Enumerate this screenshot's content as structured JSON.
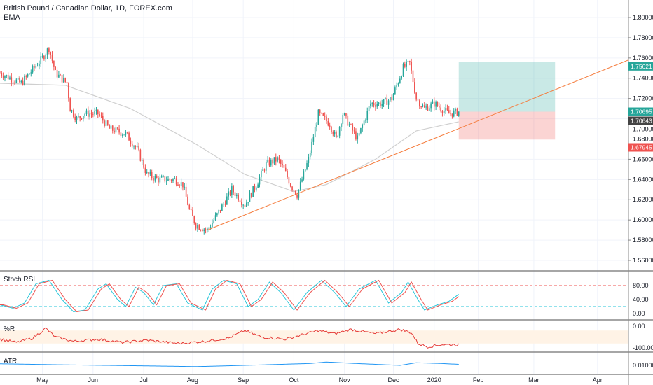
{
  "header": {
    "title": "British Pound / Canadian Dollar, 1D, FOREX.com",
    "indicator": "EMA"
  },
  "panels": {
    "stoch": "Stoch RSI",
    "wr": "%R",
    "atr": "ATR"
  },
  "chart_data": {
    "type": "candlestick",
    "symbol": "GBPCAD",
    "price_axis": {
      "ticks": [
        "1.80000",
        "1.78000",
        "1.76000",
        "1.74000",
        "1.72000",
        "1.70000",
        "1.68000",
        "1.66000",
        "1.64000",
        "1.62000",
        "1.60000",
        "1.58000",
        "1.56000"
      ],
      "ylim": [
        1.55,
        1.815
      ]
    },
    "time_axis": {
      "labels": [
        {
          "t": "May",
          "day": 26
        },
        {
          "t": "Jun",
          "day": 57
        },
        {
          "t": "Jul",
          "day": 88
        },
        {
          "t": "Aug",
          "day": 118
        },
        {
          "t": "Sep",
          "day": 149
        },
        {
          "t": "Oct",
          "day": 180
        },
        {
          "t": "Nov",
          "day": 211
        },
        {
          "t": "Dec",
          "day": 241
        },
        {
          "t": "2020",
          "day": 266
        },
        {
          "t": "Feb",
          "day": 293
        },
        {
          "t": "Mar",
          "day": 327
        },
        {
          "t": "Apr",
          "day": 366
        }
      ]
    },
    "close_path": [
      [
        0,
        1.745
      ],
      [
        13,
        1.735
      ],
      [
        26,
        1.76
      ],
      [
        30,
        1.77
      ],
      [
        34,
        1.745
      ],
      [
        41,
        1.735
      ],
      [
        43,
        1.71
      ],
      [
        47,
        1.7
      ],
      [
        52,
        1.705
      ],
      [
        60,
        1.705
      ],
      [
        67,
        1.69
      ],
      [
        77,
        1.685
      ],
      [
        84,
        1.67
      ],
      [
        90,
        1.645
      ],
      [
        97,
        1.64
      ],
      [
        107,
        1.64
      ],
      [
        112,
        1.635
      ],
      [
        116,
        1.61
      ],
      [
        120,
        1.595
      ],
      [
        127,
        1.59
      ],
      [
        133,
        1.605
      ],
      [
        142,
        1.63
      ],
      [
        150,
        1.615
      ],
      [
        157,
        1.635
      ],
      [
        163,
        1.655
      ],
      [
        170,
        1.66
      ],
      [
        174,
        1.65
      ],
      [
        178,
        1.635
      ],
      [
        182,
        1.625
      ],
      [
        189,
        1.66
      ],
      [
        195,
        1.705
      ],
      [
        202,
        1.695
      ],
      [
        206,
        1.68
      ],
      [
        210,
        1.705
      ],
      [
        219,
        1.68
      ],
      [
        227,
        1.715
      ],
      [
        234,
        1.715
      ],
      [
        240,
        1.72
      ],
      [
        247,
        1.75
      ],
      [
        251,
        1.755
      ],
      [
        255,
        1.72
      ],
      [
        260,
        1.71
      ],
      [
        266,
        1.715
      ],
      [
        275,
        1.705
      ],
      [
        281,
        1.707
      ]
    ],
    "ema_path": [
      [
        0,
        1.735
      ],
      [
        40,
        1.733
      ],
      [
        80,
        1.71
      ],
      [
        120,
        1.675
      ],
      [
        150,
        1.645
      ],
      [
        180,
        1.628
      ],
      [
        200,
        1.635
      ],
      [
        230,
        1.66
      ],
      [
        255,
        1.688
      ],
      [
        281,
        1.697
      ]
    ],
    "trendline": {
      "from": [
        127,
        1.59
      ],
      "to": [
        385,
        1.758
      ]
    },
    "position": {
      "target": "1.75621",
      "entry": "1.70695",
      "stop": "1.67945",
      "start_day": 281,
      "end_day": 340
    },
    "last_price": "1.70643",
    "colors": {
      "up": "#26a69a",
      "down": "#ef5350",
      "ema": "#cfcfcf",
      "trend": "#f57c3d"
    },
    "stoch_rsi": {
      "ticks": [
        "80.00",
        "40.00",
        "0.00"
      ],
      "k": [
        [
          0,
          25
        ],
        [
          8,
          15
        ],
        [
          15,
          30
        ],
        [
          22,
          85
        ],
        [
          30,
          95
        ],
        [
          38,
          40
        ],
        [
          45,
          5
        ],
        [
          52,
          10
        ],
        [
          60,
          70
        ],
        [
          65,
          85
        ],
        [
          72,
          40
        ],
        [
          77,
          20
        ],
        [
          83,
          75
        ],
        [
          88,
          60
        ],
        [
          94,
          25
        ],
        [
          100,
          80
        ],
        [
          108,
          85
        ],
        [
          115,
          30
        ],
        [
          124,
          10
        ],
        [
          130,
          70
        ],
        [
          137,
          95
        ],
        [
          145,
          85
        ],
        [
          152,
          20
        ],
        [
          158,
          40
        ],
        [
          165,
          90
        ],
        [
          172,
          60
        ],
        [
          180,
          10
        ],
        [
          188,
          60
        ],
        [
          197,
          95
        ],
        [
          205,
          60
        ],
        [
          212,
          20
        ],
        [
          220,
          70
        ],
        [
          230,
          95
        ],
        [
          238,
          30
        ],
        [
          246,
          60
        ],
        [
          250,
          90
        ],
        [
          256,
          40
        ],
        [
          260,
          10
        ],
        [
          268,
          25
        ],
        [
          275,
          35
        ],
        [
          281,
          55
        ]
      ]
    },
    "williams_r": {
      "ticks": [
        "0.00",
        "-100.00"
      ],
      "v": [
        [
          0,
          -60
        ],
        [
          10,
          -75
        ],
        [
          20,
          -55
        ],
        [
          28,
          -10
        ],
        [
          34,
          -50
        ],
        [
          45,
          -70
        ],
        [
          60,
          -60
        ],
        [
          75,
          -75
        ],
        [
          90,
          -65
        ],
        [
          110,
          -80
        ],
        [
          125,
          -70
        ],
        [
          140,
          -55
        ],
        [
          150,
          -20
        ],
        [
          160,
          -50
        ],
        [
          175,
          -60
        ],
        [
          185,
          -40
        ],
        [
          195,
          -20
        ],
        [
          205,
          -35
        ],
        [
          215,
          -15
        ],
        [
          230,
          -35
        ],
        [
          245,
          -15
        ],
        [
          252,
          -30
        ],
        [
          256,
          -80
        ],
        [
          262,
          -95
        ],
        [
          270,
          -85
        ],
        [
          281,
          -85
        ]
      ]
    },
    "atr": {
      "tick": "0.01000",
      "v": [
        [
          0,
          0.0115
        ],
        [
          40,
          0.0105
        ],
        [
          90,
          0.0095
        ],
        [
          120,
          0.0088
        ],
        [
          150,
          0.01
        ],
        [
          190,
          0.0118
        ],
        [
          200,
          0.0132
        ],
        [
          215,
          0.012
        ],
        [
          245,
          0.01
        ],
        [
          255,
          0.0125
        ],
        [
          270,
          0.0118
        ],
        [
          281,
          0.011
        ]
      ]
    }
  }
}
